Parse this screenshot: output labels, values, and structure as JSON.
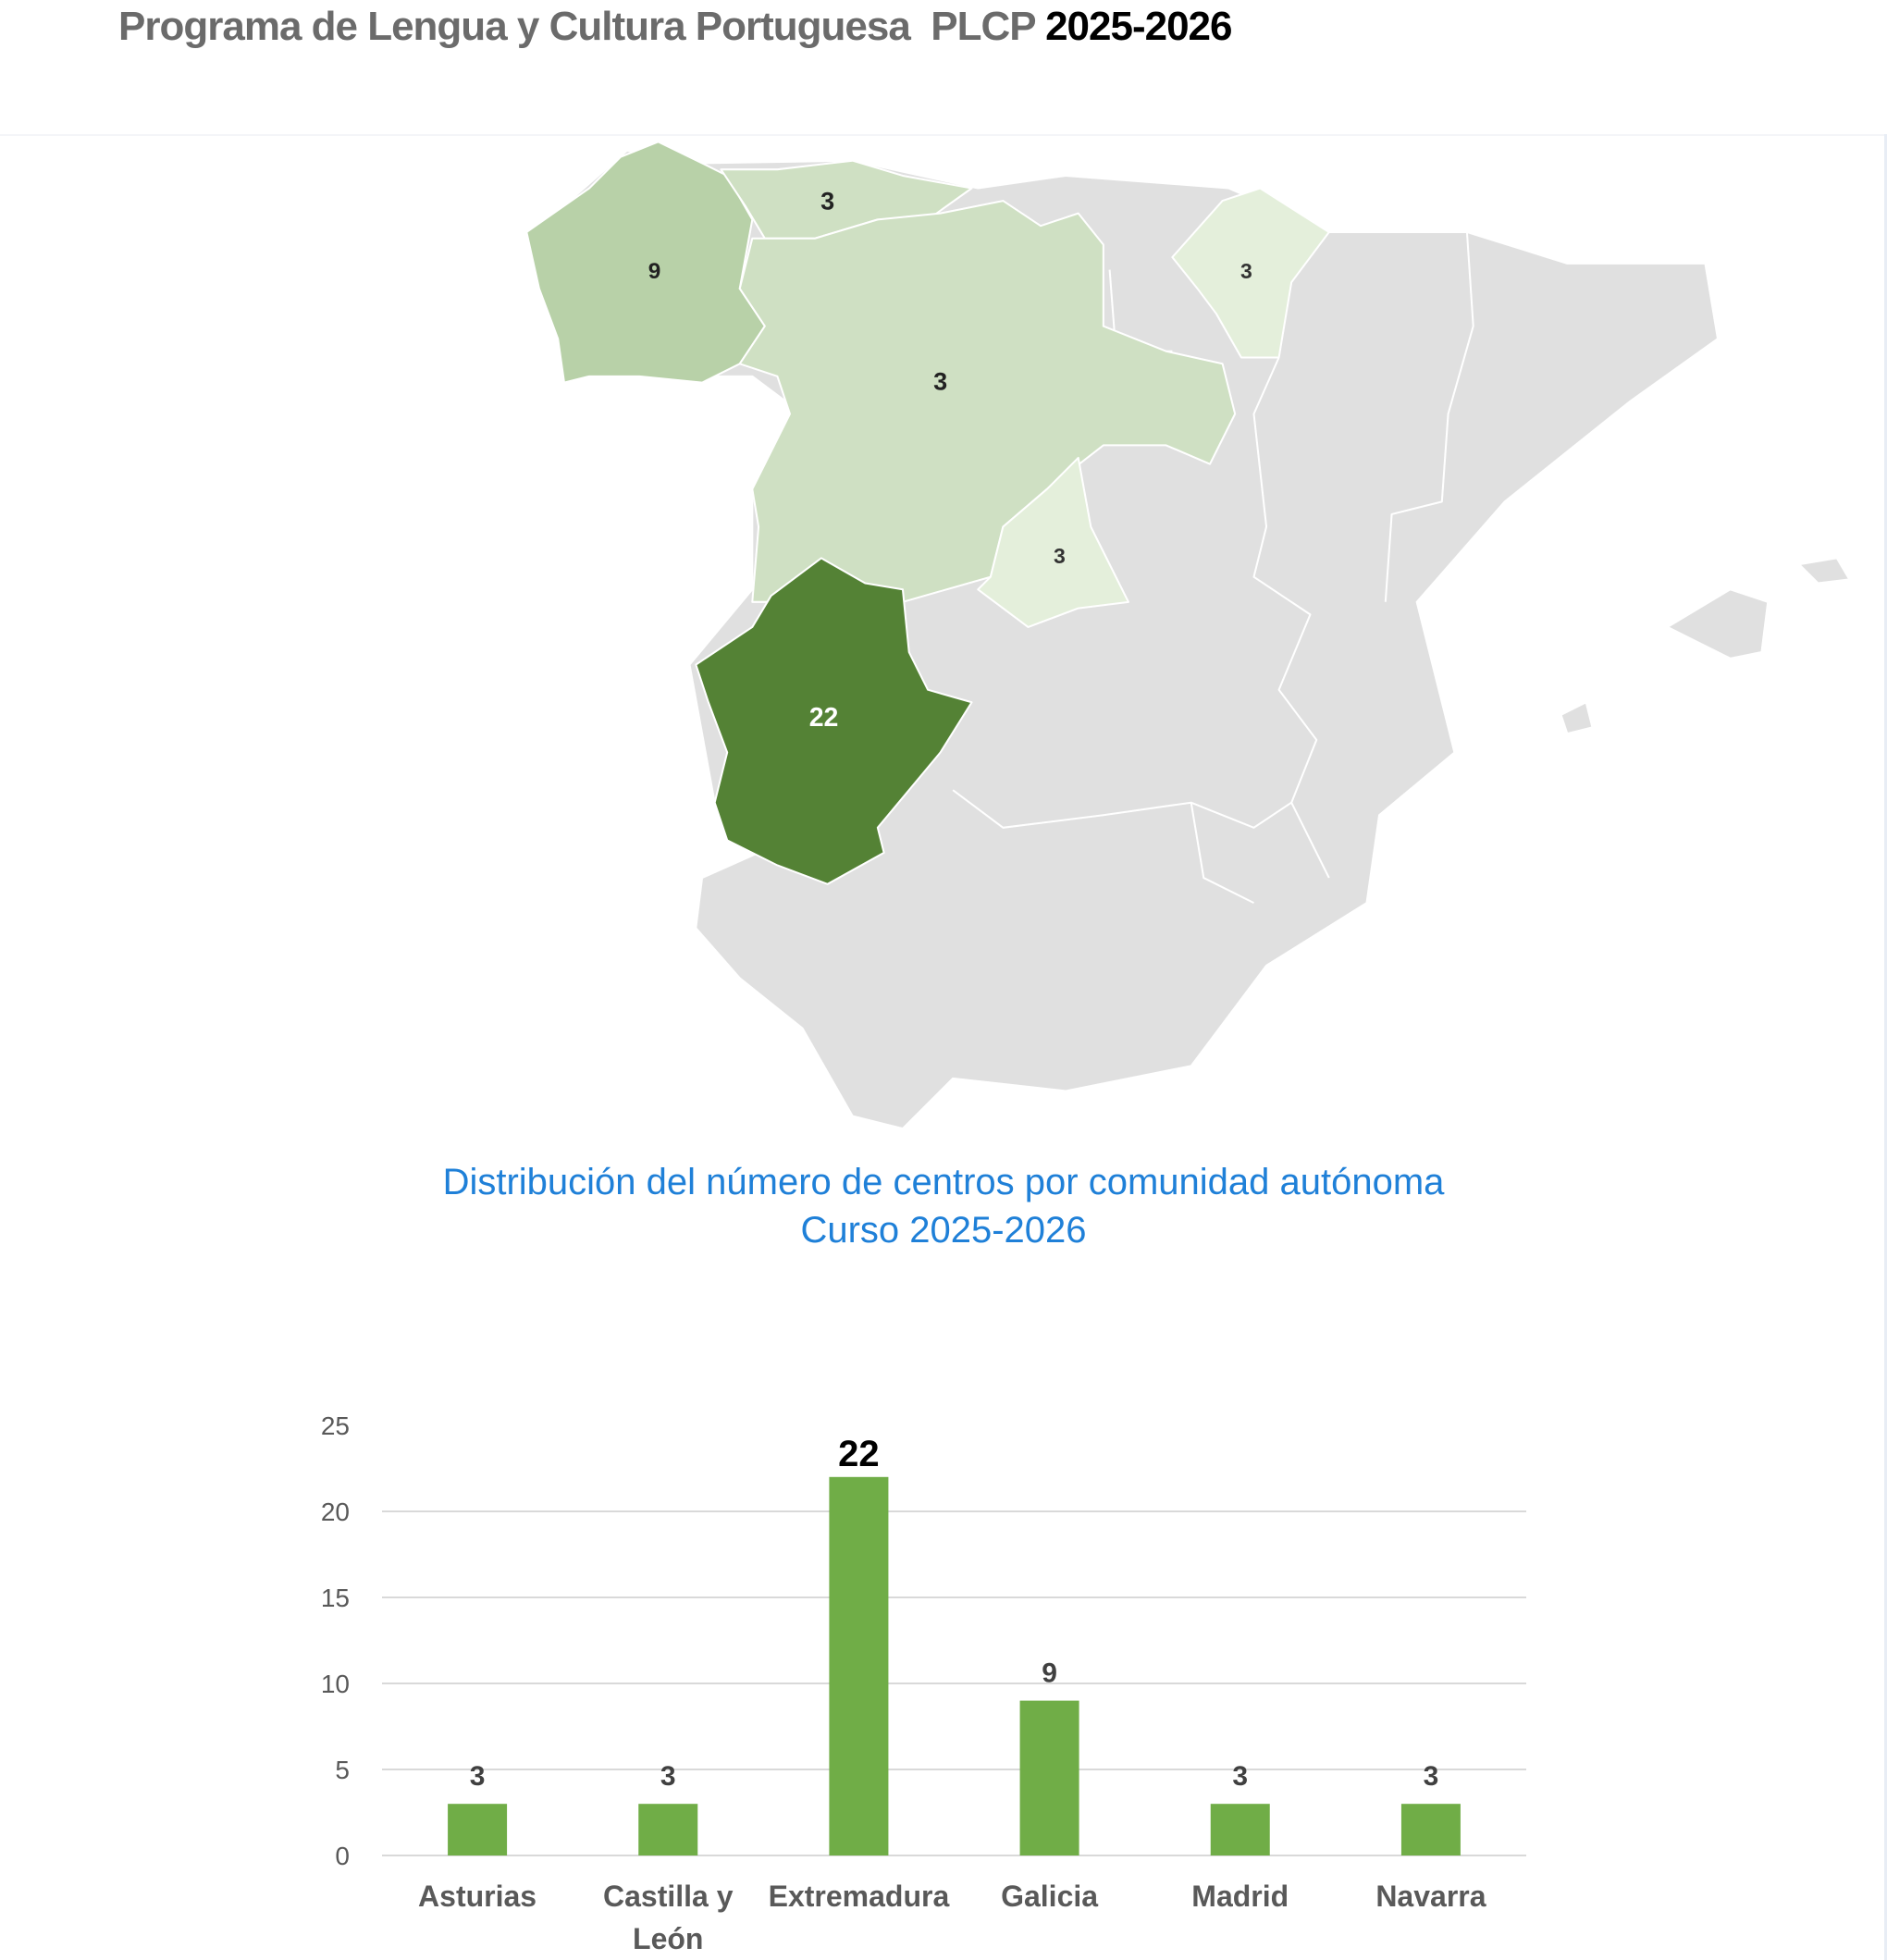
{
  "header": {
    "title": "Programa de Lengua y Cultura Portuguesa  PLCP ",
    "year": "2025-2026"
  },
  "map": {
    "colors": {
      "other": "#e0e0e0",
      "level_9": "#b8d1a8",
      "level_3a": "#cfe0c3",
      "level_3b": "#e4efdb",
      "level_22": "#548235"
    },
    "regions": [
      {
        "name": "Galicia",
        "label": "9"
      },
      {
        "name": "Asturias",
        "label": "3"
      },
      {
        "name": "Castilla y León",
        "label": "3"
      },
      {
        "name": "Navarra",
        "label": "3"
      },
      {
        "name": "Madrid",
        "label": "3"
      },
      {
        "name": "Extremadura",
        "label": "22"
      }
    ]
  },
  "chart_data": {
    "type": "bar",
    "title": "Distribución del número de centros por comunidad autónoma",
    "subtitle": "Curso 2025-2026",
    "categories": [
      "Asturias",
      "Castilla y León",
      "Extremadura",
      "Galicia",
      "Madrid",
      "Navarra"
    ],
    "category_lines": [
      [
        "Asturias"
      ],
      [
        "Castilla y",
        "León"
      ],
      [
        "Extremadura"
      ],
      [
        "Galicia"
      ],
      [
        "Madrid"
      ],
      [
        "Navarra"
      ]
    ],
    "values": [
      3,
      3,
      22,
      9,
      3,
      3
    ],
    "data_labels": [
      "3",
      "3",
      "22",
      "9",
      "3",
      "3"
    ],
    "ylim": [
      0,
      25
    ],
    "yticks": [
      "0",
      "5",
      "10",
      "15",
      "20",
      "25"
    ],
    "grid": true,
    "legend": "none",
    "bar_color": "#70ad47"
  }
}
